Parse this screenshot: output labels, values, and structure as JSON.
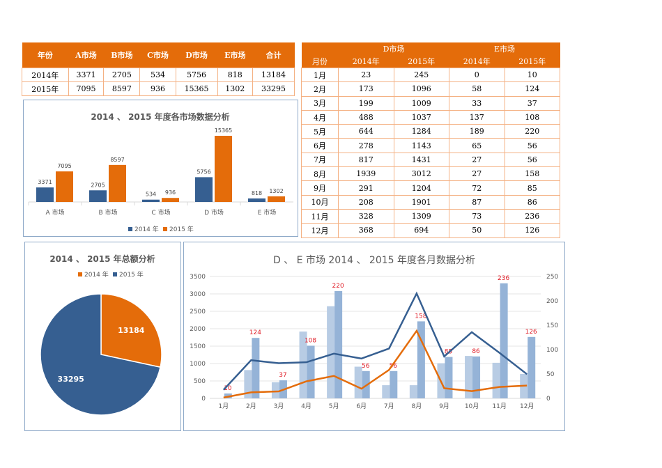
{
  "summary_table": {
    "headers": [
      "年份",
      "A市场",
      "B市场",
      "C市场",
      "D市场",
      "E市场",
      "合计"
    ],
    "rows": [
      [
        "2014年",
        "3371",
        "2705",
        "534",
        "5756",
        "818",
        "13184"
      ],
      [
        "2015年",
        "7095",
        "8597",
        "936",
        "15365",
        "1302",
        "33295"
      ]
    ]
  },
  "monthly_table": {
    "group_headers": [
      "D市场",
      "E市场"
    ],
    "headers": [
      "月份",
      "2014年",
      "2015年",
      "2014年",
      "2015年"
    ],
    "rows": [
      [
        "1月",
        "23",
        "245",
        "0",
        "10"
      ],
      [
        "2月",
        "173",
        "1096",
        "58",
        "124"
      ],
      [
        "3月",
        "199",
        "1009",
        "33",
        "37"
      ],
      [
        "4月",
        "488",
        "1037",
        "137",
        "108"
      ],
      [
        "5月",
        "644",
        "1284",
        "189",
        "220"
      ],
      [
        "6月",
        "278",
        "1143",
        "65",
        "56"
      ],
      [
        "7月",
        "817",
        "1431",
        "27",
        "56"
      ],
      [
        "8月",
        "1939",
        "3012",
        "27",
        "158"
      ],
      [
        "9月",
        "291",
        "1204",
        "72",
        "85"
      ],
      [
        "10月",
        "208",
        "1901",
        "87",
        "86"
      ],
      [
        "11月",
        "328",
        "1309",
        "73",
        "236"
      ],
      [
        "12月",
        "368",
        "694",
        "50",
        "126"
      ]
    ]
  },
  "chart_data": [
    {
      "type": "bar",
      "title": "2014 、 2015 年度各市场数据分析",
      "categories": [
        "A 市场",
        "B 市场",
        "C 市场",
        "D 市场",
        "E 市场"
      ],
      "series": [
        {
          "name": "2014 年",
          "values": [
            3371,
            2705,
            534,
            5756,
            818
          ],
          "color": "#365F91"
        },
        {
          "name": "2015 年",
          "values": [
            7095,
            8597,
            936,
            15365,
            1302
          ],
          "color": "#E46C0A"
        }
      ],
      "data_labels": true,
      "legend": "bottom",
      "grid": false
    },
    {
      "type": "pie",
      "title": "2014 、 2015 年总额分析",
      "labels": [
        "2014 年",
        "2015 年"
      ],
      "values": [
        13184,
        33295
      ],
      "colors": [
        "#E46C0A",
        "#365F91"
      ],
      "legend": "top"
    },
    {
      "type": "bar+line",
      "title": "D 、 E 市场 2014 、 2015 年度各月数据分析",
      "categories": [
        "1月",
        "2月",
        "3月",
        "4月",
        "5月",
        "6月",
        "7月",
        "8月",
        "9月",
        "10月",
        "11月",
        "12月"
      ],
      "y_left": {
        "range": [
          0,
          3500
        ],
        "ticks": [
          "0",
          "500",
          "1000",
          "1500",
          "2000",
          "2500",
          "3000",
          "3500"
        ]
      },
      "y_right": {
        "range": [
          0,
          250
        ],
        "ticks": [
          "0",
          "50",
          "100",
          "150",
          "200",
          "250"
        ]
      },
      "bars_right_axis": [
        {
          "values": [
            0,
            58,
            33,
            137,
            189,
            65,
            27,
            27,
            72,
            87,
            73,
            50
          ],
          "color": "#B8CCE4"
        },
        {
          "values": [
            10,
            124,
            37,
            108,
            220,
            56,
            56,
            158,
            85,
            86,
            236,
            126
          ],
          "color": "#95B3D7",
          "data_labels": [
            "10",
            "124",
            "37",
            "108",
            "220",
            "56",
            "56",
            "158",
            "85",
            "86",
            "236",
            "126"
          ]
        }
      ],
      "lines_left_axis": [
        {
          "values": [
            23,
            173,
            199,
            488,
            644,
            278,
            817,
            1939,
            291,
            208,
            328,
            368
          ],
          "color": "#E46C0A"
        },
        {
          "values": [
            245,
            1096,
            1009,
            1037,
            1284,
            1143,
            1431,
            3012,
            1204,
            1901,
            1309,
            694
          ],
          "color": "#365F91"
        }
      ],
      "grid": true
    }
  ]
}
